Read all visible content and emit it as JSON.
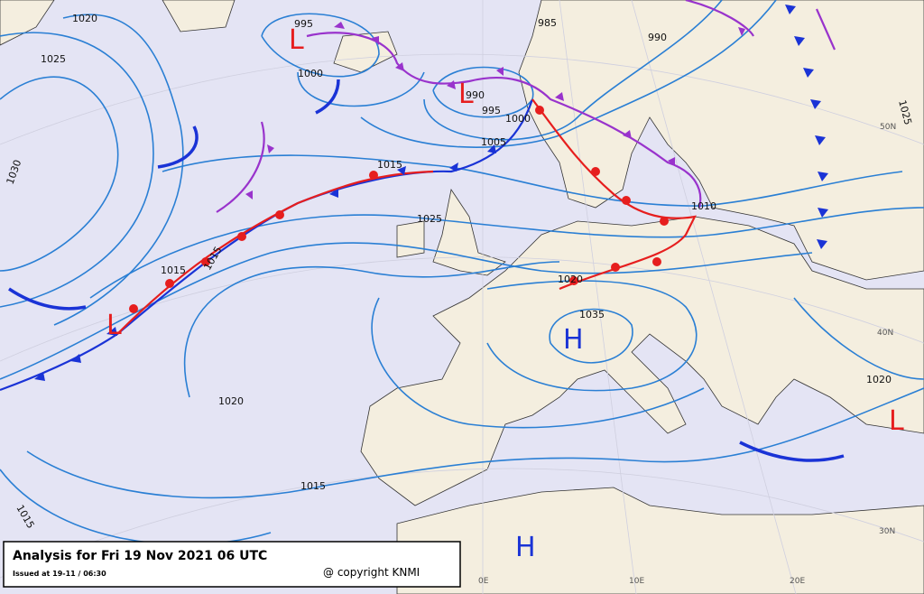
{
  "title_box": {
    "title": "Analysis for Fri 19 Nov 2021 06 UTC",
    "issued": "Issued at 19-11 / 06:30",
    "copyright": "@ copyright KNMI"
  },
  "isobar_labels": [
    "1020",
    "1025",
    "1030",
    "995",
    "1000",
    "985",
    "990",
    "1025",
    "990",
    "995",
    "1000",
    "1005",
    "1015",
    "1025",
    "1010",
    "1015",
    "1015",
    "1020",
    "1035",
    "1020",
    "1020",
    "1015",
    "1015"
  ],
  "pressure_centers": [
    "L",
    "L",
    "L",
    "H",
    "L",
    "H"
  ],
  "graticule_labels": [
    "50N",
    "40N",
    "30N",
    "0E",
    "10E",
    "20E"
  ]
}
